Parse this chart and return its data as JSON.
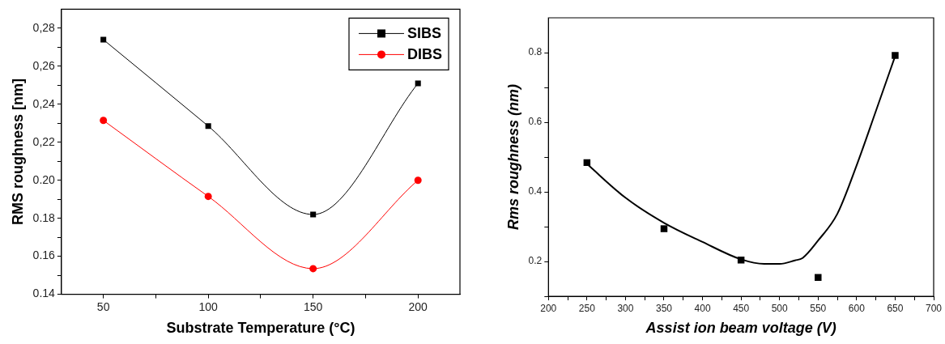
{
  "chart_data": [
    {
      "type": "line",
      "xlabel": "Substrate Temperature (°C)",
      "ylabel": "RMS roughness [nm]",
      "x": [
        50,
        100,
        150,
        200
      ],
      "xlim": [
        30,
        220
      ],
      "xticks": [
        50,
        {
          "value": 75,
          "label": null
        },
        100,
        {
          "value": 125,
          "label": null
        },
        150,
        {
          "value": 175,
          "label": null
        },
        200
      ],
      "ylim": [
        0.14,
        0.29
      ],
      "yticks": [
        0.14,
        {
          "value": 0.15,
          "label": null
        },
        0.16,
        {
          "value": 0.17,
          "label": null
        },
        0.18,
        {
          "value": 0.19,
          "label": null
        },
        {
          "value": 0.2,
          "label": "0.20"
        },
        {
          "value": 0.21,
          "label": null
        },
        {
          "value": 0.22,
          "label": "0,22"
        },
        {
          "value": 0.23,
          "label": null
        },
        {
          "value": 0.24,
          "label": "0,24"
        },
        {
          "value": 0.25,
          "label": null
        },
        {
          "value": 0.26,
          "label": "0,26"
        },
        {
          "value": 0.27,
          "label": null
        },
        {
          "value": 0.28,
          "label": "0,28"
        }
      ],
      "legend": "top right",
      "series": [
        {
          "name": "SIBS",
          "color": "#000000",
          "marker": "square",
          "values": [
            0.274,
            0.2285,
            0.182,
            0.251
          ]
        },
        {
          "name": "DIBS",
          "color": "#ff0000",
          "marker": "circle",
          "values": [
            0.2315,
            0.1915,
            0.1535,
            0.2
          ]
        }
      ]
    },
    {
      "type": "scatter",
      "xlabel": "Assist ion beam voltage (V)",
      "ylabel": "Rms roughness (nm)",
      "x": [
        250,
        350,
        450,
        550,
        650
      ],
      "xlim": [
        200,
        700
      ],
      "xticks": [
        200,
        {
          "value": 225,
          "label": null
        },
        250,
        {
          "value": 275,
          "label": null
        },
        300,
        {
          "value": 325,
          "label": null
        },
        350,
        {
          "value": 375,
          "label": null
        },
        400,
        {
          "value": 425,
          "label": null
        },
        450,
        {
          "value": 475,
          "label": null
        },
        500,
        {
          "value": 525,
          "label": null
        },
        550,
        {
          "value": 575,
          "label": null
        },
        600,
        {
          "value": 625,
          "label": null
        },
        650,
        {
          "value": 675,
          "label": null
        },
        700
      ],
      "ylim": [
        0.1,
        0.9
      ],
      "yticks": [
        {
          "value": 0.1,
          "label": null
        },
        0.2,
        {
          "value": 0.3,
          "label": null
        },
        0.4,
        {
          "value": 0.5,
          "label": null
        },
        0.6,
        {
          "value": 0.7,
          "label": null
        },
        0.8
      ],
      "series": [
        {
          "color": "#000000",
          "marker": "square",
          "values": [
            0.484,
            0.294,
            0.204,
            0.154,
            0.792
          ]
        },
        {
          "type": "line",
          "color": "#000000",
          "marker": "none",
          "x": [
            250,
            300,
            350,
            400,
            450,
            480,
            500,
            520,
            530,
            550,
            575,
            600,
            625,
            650
          ],
          "values": [
            0.48,
            0.383,
            0.311,
            0.256,
            0.206,
            0.193,
            0.193,
            0.203,
            0.21,
            0.26,
            0.337,
            0.476,
            0.632,
            0.79
          ]
        }
      ]
    }
  ]
}
